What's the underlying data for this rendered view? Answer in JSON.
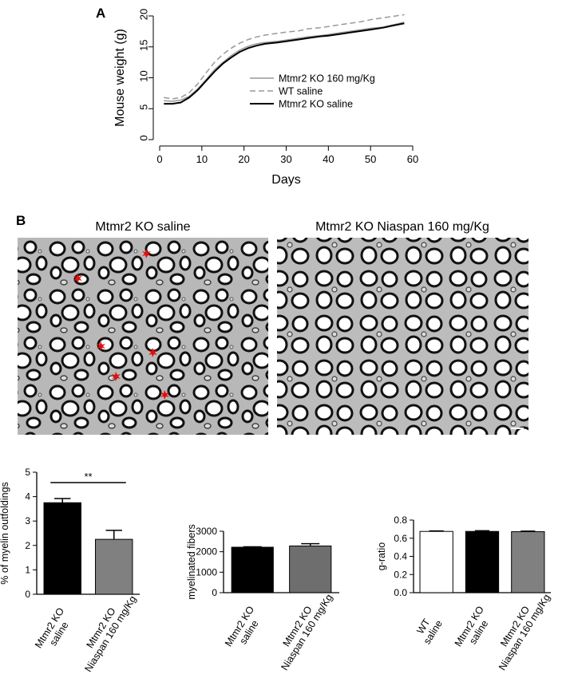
{
  "panel_labels": {
    "a": "A",
    "b": "B"
  },
  "images": [
    {
      "title": "Mtmr2 KO saline"
    },
    {
      "title": "Mtmr2 KO Niaspan 160 mg/Kg"
    }
  ],
  "chart_data": [
    {
      "type": "line",
      "y_label": "Mouse weight (g)",
      "x_label": "Days",
      "x": [
        1,
        3,
        5,
        7,
        9,
        11,
        13,
        15,
        17,
        19,
        21,
        23,
        25,
        28,
        30,
        33,
        35,
        38,
        40,
        43,
        45,
        48,
        50,
        53,
        55,
        58
      ],
      "series": [
        {
          "name": "Mtmr2 KO 160 mg/Kg",
          "color": "#999999",
          "style": "solid",
          "width": 1.5,
          "values": [
            6.3,
            6.2,
            6.4,
            7.0,
            8.2,
            9.7,
            11.3,
            12.5,
            13.6,
            14.5,
            15.1,
            15.5,
            15.7,
            15.9,
            16.1,
            16.4,
            16.6,
            16.8,
            17.0,
            17.3,
            17.5,
            17.8,
            18.0,
            18.2,
            18.5,
            19.0
          ]
        },
        {
          "name": "WT saline",
          "color": "#999999",
          "style": "dashed",
          "width": 1.5,
          "values": [
            6.8,
            6.6,
            6.8,
            7.6,
            9.0,
            10.8,
            12.5,
            13.8,
            14.8,
            15.6,
            16.2,
            16.6,
            16.9,
            17.2,
            17.4,
            17.6,
            17.9,
            18.1,
            18.3,
            18.6,
            18.8,
            19.1,
            19.4,
            19.7,
            19.9,
            20.2
          ]
        },
        {
          "name": "Mtmr2 KO saline",
          "color": "#000000",
          "style": "solid",
          "width": 2,
          "values": [
            5.8,
            5.8,
            6.0,
            6.8,
            8.0,
            9.5,
            11.0,
            12.3,
            13.3,
            14.2,
            14.8,
            15.2,
            15.5,
            15.7,
            15.9,
            16.2,
            16.4,
            16.7,
            16.8,
            17.1,
            17.3,
            17.6,
            17.8,
            18.1,
            18.4,
            18.8
          ]
        }
      ],
      "xlim": [
        0,
        60
      ],
      "xticks": [
        0,
        10,
        20,
        30,
        40,
        50,
        60
      ],
      "ylim": [
        0,
        20
      ],
      "yticks": [
        0,
        5,
        10,
        15,
        20
      ]
    },
    {
      "type": "bar",
      "y_label": "% of myelin outfoldings",
      "categories": [
        [
          "Mtmr2 KO",
          "saline"
        ],
        [
          "Mtmr2 KO",
          "Niaspan 160 mg/Kg"
        ]
      ],
      "values": [
        3.75,
        2.25
      ],
      "errors": [
        0.17,
        0.37
      ],
      "colors": [
        "#000000",
        "#808080"
      ],
      "ylim": [
        0,
        5
      ],
      "yticks": [
        0,
        1,
        2,
        3,
        4,
        5
      ],
      "significance": {
        "text": "**",
        "between": [
          0,
          1
        ]
      }
    },
    {
      "type": "bar",
      "y_label": "myelinated fibers",
      "categories": [
        [
          "Mtmr2 KO",
          "saline"
        ],
        [
          "Mtmr2 KO",
          "Niaspan 160 mg/Kg"
        ]
      ],
      "values": [
        2220,
        2280
      ],
      "errors": [
        20,
        110
      ],
      "colors": [
        "#000000",
        "#6e6e6e"
      ],
      "ylim": [
        0,
        3000
      ],
      "yticks": [
        0,
        1000,
        2000,
        3000
      ]
    },
    {
      "type": "bar",
      "y_label": "g-ratio",
      "categories": [
        [
          "WT",
          "saline"
        ],
        [
          "Mtmr2 KO",
          "saline"
        ],
        [
          "Mtmr2 KO",
          "Niaspan 160 mg/Kg"
        ]
      ],
      "values": [
        0.675,
        0.675,
        0.672
      ],
      "errors": [
        0.005,
        0.007,
        0.006
      ],
      "colors": [
        "#ffffff",
        "#000000",
        "#808080"
      ],
      "ylim": [
        0,
        0.8
      ],
      "yticks": [
        {
          "value": 0,
          "label": "0.0"
        },
        0.2,
        0.4,
        0.6,
        0.8
      ]
    }
  ]
}
